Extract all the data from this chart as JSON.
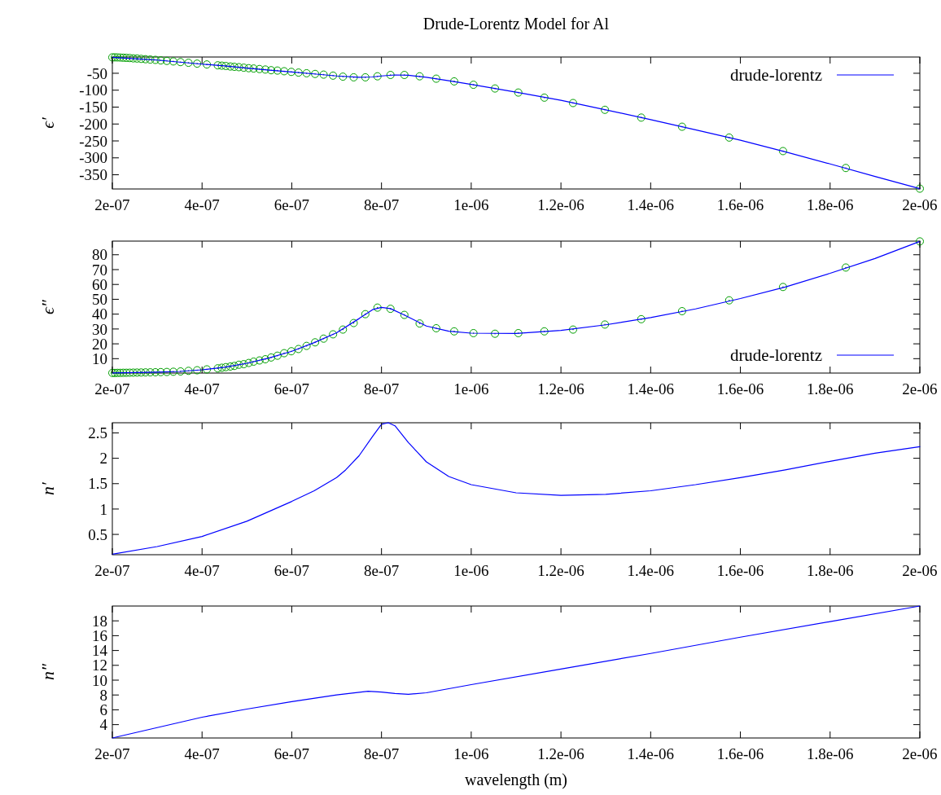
{
  "chart_data": [
    {
      "type": "line",
      "title": "Drude-Lorentz Model for Al",
      "ylabel": "ϵ′",
      "xlim": [
        2e-07,
        2e-06
      ],
      "ylim": [
        -392,
        -2
      ],
      "xticks": [
        {
          "value": 2e-07,
          "label": "2e-07"
        },
        {
          "value": 4e-07,
          "label": "4e-07"
        },
        {
          "value": 6e-07,
          "label": "6e-07"
        },
        {
          "value": 8e-07,
          "label": "8e-07"
        },
        {
          "value": 1e-06,
          "label": "1e-06"
        },
        {
          "value": 1.2e-06,
          "label": "1.2e-06"
        },
        {
          "value": 1.4e-06,
          "label": "1.4e-06"
        },
        {
          "value": 1.6e-06,
          "label": "1.6e-06"
        },
        {
          "value": 1.8e-06,
          "label": "1.8e-06"
        },
        {
          "value": 2e-06,
          "label": "2e-06"
        }
      ],
      "yticks": [
        -50,
        -100,
        -150,
        -200,
        -250,
        -300,
        -350
      ],
      "x": [
        2e-07,
        2.055e-07,
        2.114e-07,
        2.176e-07,
        2.242e-07,
        2.312e-07,
        2.387e-07,
        2.466e-07,
        2.551e-07,
        2.642e-07,
        2.74e-07,
        2.845e-07,
        2.96e-07,
        3.08e-07,
        3.215e-07,
        3.36e-07,
        3.52e-07,
        3.697e-07,
        3.89e-07,
        4.107e-07,
        4.35e-07,
        4.44e-07,
        4.53e-07,
        4.63e-07,
        4.72e-07,
        4.82e-07,
        4.93e-07,
        5.04e-07,
        5.15e-07,
        5.28e-07,
        5.41e-07,
        5.54e-07,
        5.68e-07,
        5.83e-07,
        5.99e-07,
        6.15e-07,
        6.33e-07,
        6.52e-07,
        6.71e-07,
        6.92e-07,
        7.14e-07,
        7.38e-07,
        7.64e-07,
        7.91e-07,
        8.2e-07,
        8.51e-07,
        8.85e-07,
        9.22e-07,
        9.62e-07,
        1.005e-06,
        1.053e-06,
        1.105e-06,
        1.163e-06,
        1.227e-06,
        1.298e-06,
        1.379e-06,
        1.47e-06,
        1.575e-06,
        1.695e-06,
        1.835e-06,
        2e-06
      ],
      "series": [
        {
          "name": "drude-lorentz",
          "type": "line",
          "color": "#0000ff",
          "x": [
            2e-07,
            2.5e-07,
            3e-07,
            3.5e-07,
            4e-07,
            4.5e-07,
            5e-07,
            5.5e-07,
            6e-07,
            6.5e-07,
            7e-07,
            7.5e-07,
            7.8e-07,
            8e-07,
            8.3e-07,
            8.6e-07,
            9e-07,
            9.5e-07,
            1e-06,
            1.1e-06,
            1.2e-06,
            1.3e-06,
            1.4e-06,
            1.5e-06,
            1.6e-06,
            1.7e-06,
            1.8e-06,
            1.9e-06,
            2e-06
          ],
          "values": [
            -3,
            -7,
            -11,
            -17,
            -23,
            -28,
            -35,
            -41,
            -46,
            -52,
            -58,
            -62,
            -61,
            -58,
            -55,
            -56,
            -62,
            -72,
            -83,
            -106,
            -130,
            -158,
            -187,
            -217,
            -248,
            -282,
            -318,
            -355,
            -391
          ]
        },
        {
          "type": "scatter",
          "color": "#009e00",
          "marker": "circle",
          "values": [
            -3,
            -3,
            -3.2,
            -3.5,
            -4,
            -4.5,
            -5,
            -6,
            -6.5,
            -7.5,
            -8.5,
            -9.5,
            -10.5,
            -12,
            -13.5,
            -15,
            -17,
            -19,
            -21.5,
            -24,
            -26.5,
            -27.5,
            -28.5,
            -30,
            -31,
            -32,
            -33.5,
            -35,
            -36,
            -37.5,
            -39,
            -41,
            -42,
            -44,
            -46,
            -48,
            -50,
            -52,
            -54,
            -57,
            -60,
            -62,
            -62,
            -59,
            -55,
            -55,
            -59,
            -66,
            -74,
            -84,
            -95,
            -107,
            -122,
            -138,
            -158,
            -181,
            -208,
            -240,
            -280,
            -330,
            -391
          ]
        }
      ],
      "legend": "top right"
    },
    {
      "type": "line",
      "ylabel": "ϵ″",
      "xlim": [
        2e-07,
        2e-06
      ],
      "ylim": [
        0.3,
        89.2
      ],
      "xticks": [
        {
          "value": 2e-07,
          "label": "2e-07"
        },
        {
          "value": 4e-07,
          "label": "4e-07"
        },
        {
          "value": 6e-07,
          "label": "6e-07"
        },
        {
          "value": 8e-07,
          "label": "8e-07"
        },
        {
          "value": 1e-06,
          "label": "1e-06"
        },
        {
          "value": 1.2e-06,
          "label": "1.2e-06"
        },
        {
          "value": 1.4e-06,
          "label": "1.4e-06"
        },
        {
          "value": 1.6e-06,
          "label": "1.6e-06"
        },
        {
          "value": 1.8e-06,
          "label": "1.8e-06"
        },
        {
          "value": 2e-06,
          "label": "2e-06"
        }
      ],
      "yticks": [
        10,
        20,
        30,
        40,
        50,
        60,
        70,
        80
      ],
      "x": [
        2e-07,
        2.055e-07,
        2.114e-07,
        2.176e-07,
        2.242e-07,
        2.312e-07,
        2.387e-07,
        2.466e-07,
        2.551e-07,
        2.642e-07,
        2.74e-07,
        2.845e-07,
        2.96e-07,
        3.08e-07,
        3.215e-07,
        3.36e-07,
        3.52e-07,
        3.697e-07,
        3.89e-07,
        4.107e-07,
        4.35e-07,
        4.44e-07,
        4.53e-07,
        4.63e-07,
        4.72e-07,
        4.82e-07,
        4.93e-07,
        5.04e-07,
        5.15e-07,
        5.28e-07,
        5.41e-07,
        5.54e-07,
        5.68e-07,
        5.83e-07,
        5.99e-07,
        6.15e-07,
        6.33e-07,
        6.52e-07,
        6.71e-07,
        6.92e-07,
        7.14e-07,
        7.38e-07,
        7.64e-07,
        7.91e-07,
        8.2e-07,
        8.51e-07,
        8.85e-07,
        9.22e-07,
        9.62e-07,
        1.005e-06,
        1.053e-06,
        1.105e-06,
        1.163e-06,
        1.227e-06,
        1.298e-06,
        1.379e-06,
        1.47e-06,
        1.575e-06,
        1.695e-06,
        1.835e-06,
        2e-06
      ],
      "series": [
        {
          "name": "drude-lorentz",
          "type": "line",
          "color": "#0000ff",
          "x": [
            2e-07,
            2.5e-07,
            3e-07,
            3.5e-07,
            4e-07,
            4.5e-07,
            5e-07,
            5.5e-07,
            6e-07,
            6.5e-07,
            7e-07,
            7.5e-07,
            7.8e-07,
            8e-07,
            8.2e-07,
            8.5e-07,
            9e-07,
            9.5e-07,
            1e-06,
            1.1e-06,
            1.2e-06,
            1.3e-06,
            1.4e-06,
            1.5e-06,
            1.6e-06,
            1.7e-06,
            1.8e-06,
            1.9e-06,
            2e-06
          ],
          "values": [
            0.4,
            0.6,
            0.9,
            1.4,
            2.5,
            4.2,
            6.9,
            10.5,
            15,
            20.8,
            27.5,
            37,
            43,
            44.5,
            43.7,
            39.5,
            32,
            28.5,
            27.2,
            27,
            29,
            32.8,
            37.7,
            43.5,
            50.5,
            58.3,
            67.5,
            77.5,
            89
          ]
        },
        {
          "type": "scatter",
          "color": "#009e00",
          "marker": "circle",
          "values": [
            0.4,
            0.4,
            0.45,
            0.45,
            0.5,
            0.5,
            0.55,
            0.6,
            0.65,
            0.7,
            0.75,
            0.8,
            0.85,
            0.95,
            1.05,
            1.2,
            1.4,
            1.8,
            2.2,
            2.8,
            3.5,
            3.9,
            4.3,
            4.7,
            5.1,
            5.9,
            6.3,
            7.1,
            8,
            8.8,
            9.6,
            10.8,
            12,
            13.7,
            15,
            16.5,
            18.6,
            21,
            23.5,
            26.4,
            29.6,
            34,
            40,
            44.4,
            43.6,
            39.5,
            33.7,
            30.5,
            28.4,
            27.2,
            26.8,
            27.2,
            28.4,
            29.6,
            33,
            36.6,
            42,
            49.3,
            58.3,
            71.4,
            89
          ]
        }
      ],
      "legend": "bottom right"
    },
    {
      "type": "line",
      "ylabel": "n′",
      "xlim": [
        2e-07,
        2e-06
      ],
      "ylim": [
        0.1,
        2.7
      ],
      "xticks": [
        {
          "value": 2e-07,
          "label": "2e-07"
        },
        {
          "value": 4e-07,
          "label": "4e-07"
        },
        {
          "value": 6e-07,
          "label": "6e-07"
        },
        {
          "value": 8e-07,
          "label": "8e-07"
        },
        {
          "value": 1e-06,
          "label": "1e-06"
        },
        {
          "value": 1.2e-06,
          "label": "1.2e-06"
        },
        {
          "value": 1.4e-06,
          "label": "1.4e-06"
        },
        {
          "value": 1.6e-06,
          "label": "1.6e-06"
        },
        {
          "value": 1.8e-06,
          "label": "1.8e-06"
        },
        {
          "value": 2e-06,
          "label": "2e-06"
        }
      ],
      "yticks": [
        0.5,
        1,
        1.5,
        2,
        2.5
      ],
      "x": [
        2e-07,
        3e-07,
        4e-07,
        5e-07,
        6e-07,
        6.5e-07,
        7e-07,
        7.2e-07,
        7.5e-07,
        7.8e-07,
        8e-07,
        8.15e-07,
        8.3e-07,
        8.6e-07,
        8.8e-07,
        9e-07,
        9.5e-07,
        1e-06,
        1.1e-06,
        1.2e-06,
        1.3e-06,
        1.4e-06,
        1.5e-06,
        1.6e-06,
        1.7e-06,
        1.8e-06,
        1.9e-06,
        2e-06
      ],
      "series": [
        {
          "type": "line",
          "color": "#0000ff",
          "values": [
            0.11,
            0.26,
            0.46,
            0.76,
            1.15,
            1.36,
            1.62,
            1.77,
            2.05,
            2.43,
            2.67,
            2.7,
            2.64,
            2.31,
            2.12,
            1.93,
            1.64,
            1.48,
            1.32,
            1.27,
            1.29,
            1.36,
            1.48,
            1.62,
            1.77,
            1.94,
            2.1,
            2.23
          ]
        }
      ]
    },
    {
      "type": "line",
      "ylabel": "n″",
      "xlabel": "wavelength (m)",
      "xlim": [
        2e-07,
        2e-06
      ],
      "ylim": [
        2.2,
        20
      ],
      "xticks": [
        {
          "value": 2e-07,
          "label": "2e-07"
        },
        {
          "value": 4e-07,
          "label": "4e-07"
        },
        {
          "value": 6e-07,
          "label": "6e-07"
        },
        {
          "value": 8e-07,
          "label": "8e-07"
        },
        {
          "value": 1e-06,
          "label": "1e-06"
        },
        {
          "value": 1.2e-06,
          "label": "1.2e-06"
        },
        {
          "value": 1.4e-06,
          "label": "1.4e-06"
        },
        {
          "value": 1.6e-06,
          "label": "1.6e-06"
        },
        {
          "value": 1.8e-06,
          "label": "1.8e-06"
        },
        {
          "value": 2e-06,
          "label": "2e-06"
        }
      ],
      "yticks": [
        4,
        6,
        8,
        10,
        12,
        14,
        16,
        18
      ],
      "x": [
        2e-07,
        3e-07,
        4e-07,
        5e-07,
        6e-07,
        7e-07,
        7.7e-07,
        8e-07,
        8.3e-07,
        8.6e-07,
        9e-07,
        1e-06,
        1.2e-06,
        1.4e-06,
        1.6e-06,
        1.8e-06,
        2e-06
      ],
      "series": [
        {
          "type": "line",
          "color": "#0000ff",
          "values": [
            2.2,
            3.6,
            5,
            6.1,
            7.1,
            8,
            8.5,
            8.4,
            8.2,
            8.1,
            8.3,
            9.4,
            11.5,
            13.6,
            15.8,
            17.9,
            20
          ]
        }
      ]
    }
  ]
}
